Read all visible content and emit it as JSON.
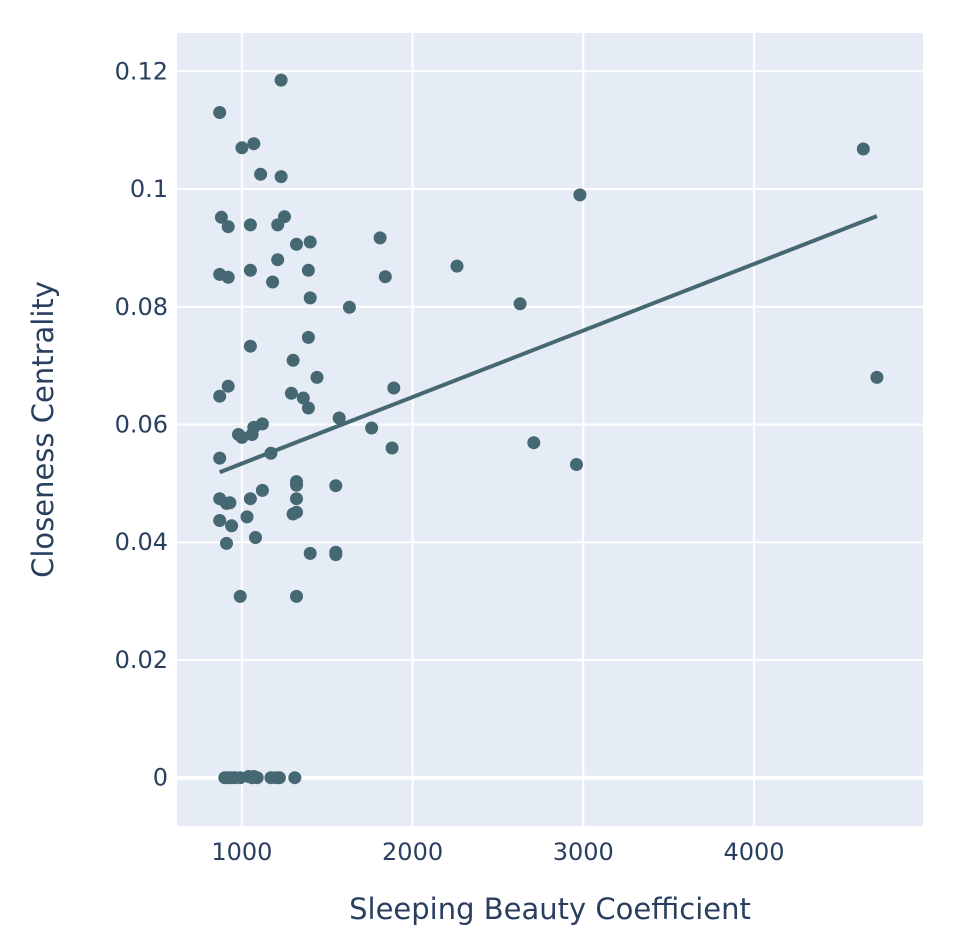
{
  "colors": {
    "background": "#ffffff",
    "plot_background": "#e5ecf6",
    "grid": "#ffffff",
    "marker": "#456872",
    "trendline": "#456872",
    "text": "#2a3f5f"
  },
  "chart_data": {
    "type": "scatter",
    "title": "",
    "xlabel": "Sleeping Beauty Coefficient",
    "ylabel": "Closeness Centrality",
    "xlim": [
      620,
      4990
    ],
    "ylim": [
      -0.0082,
      0.1265
    ],
    "xticks": [
      1000,
      2000,
      3000,
      4000
    ],
    "xtick_labels": [
      "1000",
      "2000",
      "3000",
      "4000"
    ],
    "yticks": [
      0,
      0.02,
      0.04,
      0.06,
      0.08,
      0.1,
      0.12
    ],
    "ytick_labels": [
      "0",
      "0.02",
      "0.04",
      "0.06",
      "0.08",
      "0.1",
      "0.12"
    ],
    "grid": true,
    "legend": "none",
    "series": [
      {
        "mode": "markers",
        "points": [
          [
            870,
            0.113
          ],
          [
            1230,
            0.1185
          ],
          [
            1000,
            0.107
          ],
          [
            1070,
            0.1077
          ],
          [
            1110,
            0.1025
          ],
          [
            1230,
            0.1021
          ],
          [
            880,
            0.0952
          ],
          [
            920,
            0.0936
          ],
          [
            1050,
            0.0939
          ],
          [
            1210,
            0.0939
          ],
          [
            1250,
            0.0953
          ],
          [
            1320,
            0.0906
          ],
          [
            1400,
            0.091
          ],
          [
            1810,
            0.0917
          ],
          [
            4640,
            0.1068
          ],
          [
            2980,
            0.099
          ],
          [
            870,
            0.0855
          ],
          [
            920,
            0.085
          ],
          [
            1050,
            0.0862
          ],
          [
            1210,
            0.088
          ],
          [
            1390,
            0.0862
          ],
          [
            1180,
            0.0842
          ],
          [
            1840,
            0.0851
          ],
          [
            2260,
            0.0869
          ],
          [
            1400,
            0.0815
          ],
          [
            1630,
            0.0799
          ],
          [
            2630,
            0.0805
          ],
          [
            1390,
            0.0748
          ],
          [
            1050,
            0.0733
          ],
          [
            1300,
            0.0709
          ],
          [
            920,
            0.0665
          ],
          [
            870,
            0.0648
          ],
          [
            1290,
            0.0653
          ],
          [
            1440,
            0.068
          ],
          [
            1360,
            0.0645
          ],
          [
            1890,
            0.0662
          ],
          [
            1390,
            0.0628
          ],
          [
            4720,
            0.068
          ],
          [
            980,
            0.0583
          ],
          [
            1000,
            0.0578
          ],
          [
            1060,
            0.0583
          ],
          [
            1070,
            0.0595
          ],
          [
            1120,
            0.0601
          ],
          [
            1570,
            0.0611
          ],
          [
            1760,
            0.0594
          ],
          [
            1880,
            0.056
          ],
          [
            2710,
            0.0569
          ],
          [
            1170,
            0.0551
          ],
          [
            870,
            0.0543
          ],
          [
            2960,
            0.0532
          ],
          [
            870,
            0.0474
          ],
          [
            910,
            0.0466
          ],
          [
            930,
            0.0467
          ],
          [
            1050,
            0.0474
          ],
          [
            1120,
            0.0488
          ],
          [
            1320,
            0.0503
          ],
          [
            1320,
            0.0497
          ],
          [
            1320,
            0.0474
          ],
          [
            1550,
            0.0496
          ],
          [
            870,
            0.0437
          ],
          [
            940,
            0.0428
          ],
          [
            1030,
            0.0443
          ],
          [
            1300,
            0.0448
          ],
          [
            1320,
            0.0451
          ],
          [
            910,
            0.0398
          ],
          [
            1080,
            0.0408
          ],
          [
            1400,
            0.0381
          ],
          [
            1550,
            0.0383
          ],
          [
            1550,
            0.0379
          ],
          [
            990,
            0.0308
          ],
          [
            1320,
            0.0308
          ],
          [
            900,
            0.0
          ],
          [
            920,
            0.0
          ],
          [
            940,
            0.0
          ],
          [
            960,
            0.0
          ],
          [
            990,
            0.0
          ],
          [
            1040,
            0.0002
          ],
          [
            1060,
            0.0
          ],
          [
            1070,
            0.0002
          ],
          [
            1090,
            0.0
          ],
          [
            1170,
            0.0
          ],
          [
            1200,
            0.0
          ],
          [
            1220,
            0.0
          ],
          [
            1310,
            0.0
          ]
        ]
      },
      {
        "mode": "lines",
        "points": [
          [
            870,
            0.0519
          ],
          [
            4720,
            0.0954
          ]
        ]
      }
    ]
  }
}
